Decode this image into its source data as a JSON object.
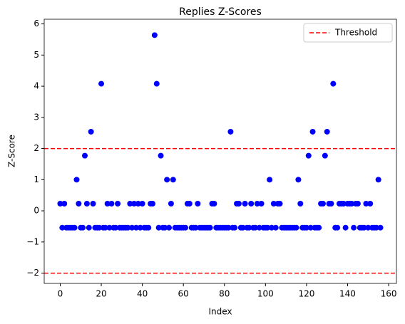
{
  "chart_data": {
    "type": "scatter",
    "title": "Replies Z-Scores",
    "x_label": "Index",
    "y_label": "Z-Score",
    "x": [
      0,
      1,
      2,
      3,
      4,
      5,
      6,
      7,
      8,
      9,
      10,
      11,
      12,
      13,
      14,
      15,
      16,
      17,
      18,
      19,
      20,
      21,
      22,
      23,
      24,
      25,
      26,
      27,
      28,
      29,
      30,
      31,
      32,
      33,
      34,
      35,
      36,
      37,
      38,
      39,
      40,
      41,
      42,
      43,
      44,
      45,
      46,
      47,
      48,
      49,
      50,
      51,
      52,
      53,
      54,
      55,
      56,
      57,
      58,
      59,
      60,
      61,
      62,
      63,
      64,
      65,
      66,
      67,
      68,
      69,
      70,
      71,
      72,
      73,
      74,
      75,
      76,
      77,
      78,
      79,
      80,
      81,
      82,
      83,
      84,
      85,
      86,
      87,
      88,
      89,
      90,
      91,
      92,
      93,
      94,
      95,
      96,
      97,
      98,
      99,
      100,
      101,
      102,
      103,
      104,
      105,
      106,
      107,
      108,
      109,
      110,
      111,
      112,
      113,
      114,
      115,
      116,
      117,
      118,
      119,
      120,
      121,
      122,
      123,
      124,
      125,
      126,
      127,
      128,
      129,
      130,
      131,
      132,
      133,
      134,
      135,
      136,
      137,
      138,
      139,
      140,
      141,
      142,
      143,
      144,
      145,
      146,
      147,
      148,
      149,
      150,
      151,
      152,
      153,
      154,
      155,
      156
    ],
    "series": [
      {
        "name": "Z-Score",
        "color": "#0000ff",
        "values": [
          0.23,
          -0.54,
          0.23,
          -0.54,
          -0.54,
          -0.54,
          -0.54,
          -0.54,
          1.0,
          0.23,
          -0.54,
          -0.54,
          1.77,
          0.23,
          -0.54,
          2.54,
          0.23,
          -0.54,
          -0.54,
          -0.54,
          4.08,
          -0.54,
          -0.54,
          0.23,
          -0.54,
          0.23,
          -0.54,
          -0.54,
          0.23,
          -0.54,
          -0.54,
          -0.54,
          -0.54,
          -0.54,
          0.23,
          -0.54,
          0.23,
          -0.54,
          0.23,
          -0.54,
          0.23,
          -0.54,
          -0.54,
          -0.54,
          0.23,
          0.23,
          5.64,
          4.08,
          -0.54,
          1.77,
          -0.54,
          -0.54,
          1.0,
          -0.54,
          0.23,
          1.0,
          -0.54,
          -0.54,
          -0.54,
          -0.54,
          -0.54,
          -0.54,
          0.23,
          0.23,
          -0.54,
          -0.54,
          -0.54,
          0.23,
          -0.54,
          -0.54,
          -0.54,
          -0.54,
          -0.54,
          -0.54,
          0.23,
          0.23,
          -0.54,
          -0.54,
          -0.54,
          -0.54,
          -0.54,
          -0.54,
          -0.54,
          2.54,
          -0.54,
          -0.54,
          0.23,
          0.23,
          -0.54,
          -0.54,
          0.23,
          -0.54,
          -0.54,
          0.23,
          -0.54,
          -0.54,
          0.23,
          -0.54,
          0.23,
          -0.54,
          -0.54,
          -0.54,
          1.0,
          -0.54,
          0.23,
          -0.54,
          0.23,
          0.23,
          -0.54,
          -0.54,
          -0.54,
          -0.54,
          -0.54,
          -0.54,
          -0.54,
          -0.54,
          1.0,
          0.23,
          -0.54,
          -0.54,
          -0.54,
          1.77,
          -0.54,
          2.54,
          -0.54,
          -0.54,
          -0.54,
          0.23,
          0.23,
          1.77,
          2.54,
          0.23,
          0.23,
          4.08,
          -0.54,
          -0.54,
          0.23,
          0.23,
          0.23,
          -0.54,
          0.23,
          0.23,
          0.23,
          -0.54,
          0.23,
          0.23,
          -0.54,
          -0.54,
          -0.54,
          0.23,
          -0.54,
          0.23,
          -0.54,
          -0.54,
          -0.54,
          1.0,
          -0.54
        ]
      }
    ],
    "threshold": {
      "name": "Threshold",
      "color": "#ff0000",
      "values": [
        2,
        -2
      ]
    },
    "xlim": [
      -7.8,
      163.8
    ],
    "ylim": [
      -2.33,
      6.15
    ],
    "xticks": [
      0,
      20,
      40,
      60,
      80,
      100,
      120,
      140,
      160
    ],
    "yticks": [
      {
        "value": -2,
        "label": "−2"
      },
      {
        "value": -1,
        "label": "−1"
      },
      0,
      1,
      2,
      3,
      4,
      5,
      6
    ],
    "legend": "upper right"
  }
}
